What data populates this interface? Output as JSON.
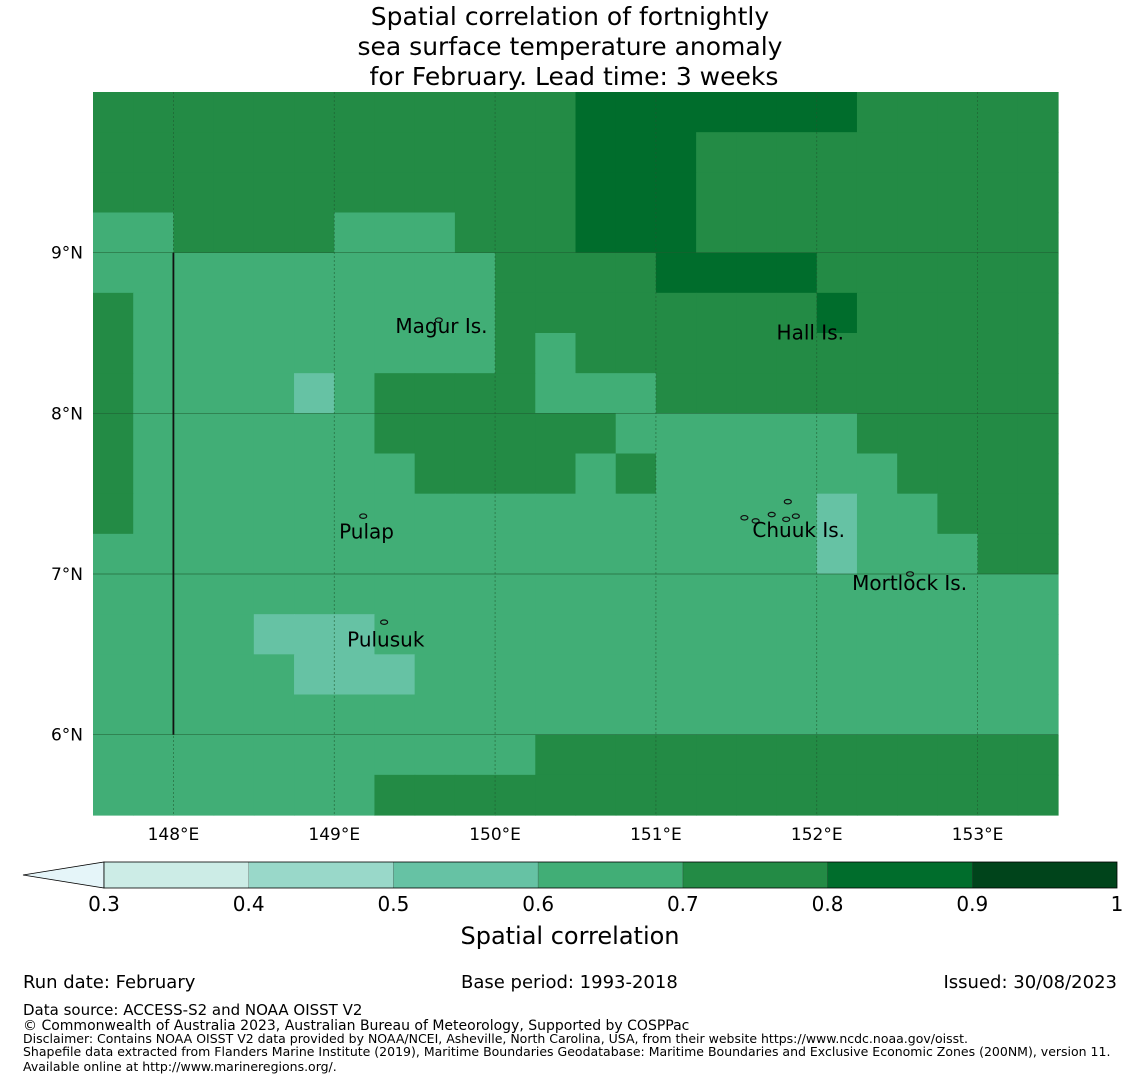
{
  "title": {
    "line1": "Spatial correlation of fortnightly",
    "line2": "sea surface temperature anomaly",
    "line3": " for February. Lead time: 3 weeks"
  },
  "map": {
    "lon_range": [
      147.5,
      153.5
    ],
    "lat_range": [
      5.5,
      10.0
    ],
    "lon_ticks": [
      "148°E",
      "149°E",
      "150°E",
      "151°E",
      "152°E",
      "153°E"
    ],
    "lat_ticks": [
      "9°N",
      "8°N",
      "7°N",
      "6°N"
    ],
    "grid": [
      [
        7,
        7,
        7,
        7,
        7,
        7,
        7,
        7,
        7,
        7,
        7,
        7,
        8,
        8,
        8,
        8,
        8,
        8,
        8,
        7,
        7,
        7,
        7,
        7
      ],
      [
        7,
        7,
        7,
        7,
        7,
        7,
        7,
        7,
        7,
        7,
        7,
        7,
        8,
        8,
        8,
        7,
        7,
        7,
        7,
        7,
        7,
        7,
        7,
        7
      ],
      [
        7,
        7,
        7,
        7,
        7,
        7,
        7,
        7,
        7,
        7,
        7,
        7,
        8,
        8,
        8,
        7,
        7,
        7,
        7,
        7,
        7,
        7,
        7,
        7
      ],
      [
        6,
        6,
        7,
        7,
        7,
        7,
        6,
        6,
        6,
        7,
        7,
        7,
        8,
        8,
        8,
        7,
        7,
        7,
        7,
        7,
        7,
        7,
        7,
        7
      ],
      [
        6,
        6,
        6,
        6,
        6,
        6,
        6,
        6,
        6,
        6,
        7,
        7,
        7,
        7,
        8,
        8,
        8,
        8,
        7,
        7,
        7,
        7,
        7,
        7
      ],
      [
        7,
        6,
        6,
        6,
        6,
        6,
        6,
        6,
        6,
        6,
        7,
        7,
        7,
        7,
        7,
        7,
        7,
        7,
        8,
        7,
        7,
        7,
        7,
        7
      ],
      [
        7,
        6,
        6,
        6,
        6,
        6,
        6,
        6,
        6,
        6,
        7,
        6,
        7,
        7,
        7,
        7,
        7,
        7,
        7,
        7,
        7,
        7,
        7,
        7
      ],
      [
        7,
        6,
        6,
        6,
        6,
        5,
        6,
        7,
        7,
        7,
        7,
        6,
        6,
        6,
        7,
        7,
        7,
        7,
        7,
        7,
        7,
        7,
        7,
        7
      ],
      [
        7,
        6,
        6,
        6,
        6,
        6,
        6,
        7,
        7,
        7,
        7,
        7,
        7,
        6,
        6,
        6,
        6,
        6,
        6,
        7,
        7,
        7,
        7,
        7
      ],
      [
        7,
        6,
        6,
        6,
        6,
        6,
        6,
        6,
        7,
        7,
        7,
        7,
        6,
        7,
        6,
        6,
        6,
        6,
        6,
        6,
        7,
        7,
        7,
        7
      ],
      [
        7,
        6,
        6,
        6,
        6,
        6,
        6,
        6,
        6,
        6,
        6,
        6,
        6,
        6,
        6,
        6,
        6,
        6,
        5,
        6,
        6,
        7,
        7,
        7
      ],
      [
        6,
        6,
        6,
        6,
        6,
        6,
        6,
        6,
        6,
        6,
        6,
        6,
        6,
        6,
        6,
        6,
        6,
        6,
        5,
        6,
        6,
        6,
        7,
        7
      ],
      [
        6,
        6,
        6,
        6,
        6,
        6,
        6,
        6,
        6,
        6,
        6,
        6,
        6,
        6,
        6,
        6,
        6,
        6,
        6,
        6,
        6,
        6,
        6,
        6
      ],
      [
        6,
        6,
        6,
        6,
        5,
        5,
        5,
        6,
        6,
        6,
        6,
        6,
        6,
        6,
        6,
        6,
        6,
        6,
        6,
        6,
        6,
        6,
        6,
        6
      ],
      [
        6,
        6,
        6,
        6,
        6,
        5,
        5,
        5,
        6,
        6,
        6,
        6,
        6,
        6,
        6,
        6,
        6,
        6,
        6,
        6,
        6,
        6,
        6,
        6
      ],
      [
        6,
        6,
        6,
        6,
        6,
        6,
        6,
        6,
        6,
        6,
        6,
        6,
        6,
        6,
        6,
        6,
        6,
        6,
        6,
        6,
        6,
        6,
        6,
        6
      ],
      [
        6,
        6,
        6,
        6,
        6,
        6,
        6,
        6,
        6,
        6,
        6,
        7,
        7,
        7,
        7,
        7,
        7,
        7,
        7,
        7,
        7,
        7,
        7,
        7
      ],
      [
        6,
        6,
        6,
        6,
        6,
        6,
        6,
        7,
        7,
        7,
        7,
        7,
        7,
        7,
        7,
        7,
        7,
        7,
        7,
        7,
        7,
        7,
        7,
        7
      ]
    ],
    "places": [
      {
        "name": "Magur Is.",
        "lon": 149.38,
        "lat": 8.5
      },
      {
        "name": "Hall Is.",
        "lon": 151.75,
        "lat": 8.46
      },
      {
        "name": "Pulap",
        "lon": 149.03,
        "lat": 7.22
      },
      {
        "name": "Chuuk Is.",
        "lon": 151.6,
        "lat": 7.23
      },
      {
        "name": "Mortlock Is.",
        "lon": 152.22,
        "lat": 6.9
      },
      {
        "name": "Pulusuk",
        "lon": 149.08,
        "lat": 6.55
      }
    ]
  },
  "colorbar": {
    "label": "Spatial correlation",
    "ticks": [
      "0.3",
      "0.4",
      "0.5",
      "0.6",
      "0.7",
      "0.8",
      "0.9",
      "1"
    ],
    "extend_color": "#e5f5f9",
    "colors": [
      "#ccece6",
      "#99d8c9",
      "#66c2a4",
      "#41ae76",
      "#238b45",
      "#006d2c",
      "#00441b"
    ]
  },
  "footer": {
    "run_date": "Run date: February",
    "base_period": "Base period: 1993-2018",
    "issued": "Issued: 30/08/2023",
    "data_source": "Data source: ACCESS-S2 and NOAA OISST V2",
    "copyright": "© Commonwealth of Australia 2023, Australian Bureau of Meteorology, Supported by COSPPac",
    "disclaimer": "Disclaimer: Contains NOAA OISST V2 data provided by NOAA/NCEI, Asheville, North Carolina, USA, from their website https://www.ncdc.noaa.gov/oisst.",
    "shapefile": "Shapefile data extracted from Flanders Marine Institute (2019), Maritime Boundaries Geodatabase: Maritime Boundaries and Exclusive Economic Zones (200NM), version 11. Available online at http://www.marineregions.org/."
  }
}
